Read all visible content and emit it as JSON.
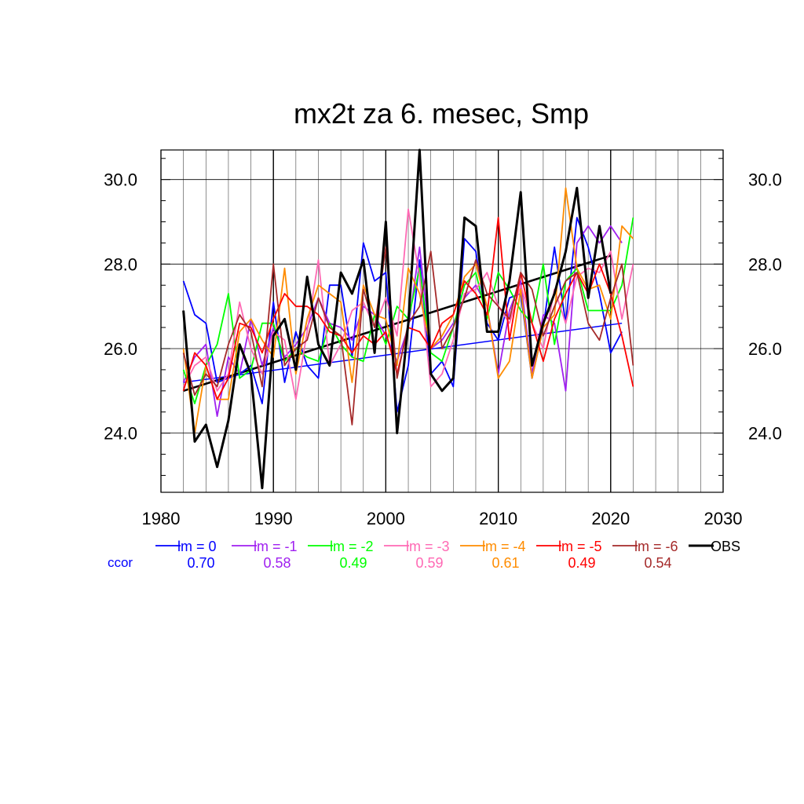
{
  "chart_data": {
    "type": "line",
    "title": "mx2t za 6. mesec, Smp",
    "xlabel": "",
    "ylabel": "",
    "xlim": [
      1980,
      2030
    ],
    "ylim": [
      22.6,
      30.7
    ],
    "x_ticks": [
      "1980",
      "1990",
      "2000",
      "2010",
      "2020",
      "2030"
    ],
    "y_ticks": [
      "24.0",
      "26.0",
      "28.0",
      "30.0"
    ],
    "x_tick_values": [
      1980,
      1990,
      2000,
      2010,
      2020,
      2030
    ],
    "y_tick_values": [
      24.0,
      26.0,
      28.0,
      30.0
    ],
    "grid": true,
    "legend_position": "bottom",
    "ccor_label": "ccor",
    "series": [
      {
        "name": "lm = 0",
        "color": "#0000ff",
        "ccor": "0.70",
        "trend": [
          25.2,
          26.6
        ],
        "x": [
          1982,
          1983,
          1984,
          1985,
          1986,
          1987,
          1988,
          1989,
          1990,
          1991,
          1992,
          1993,
          1994,
          1995,
          1996,
          1997,
          1998,
          1999,
          2000,
          2001,
          2002,
          2003,
          2004,
          2005,
          2006,
          2007,
          2008,
          2009,
          2010,
          2011,
          2012,
          2013,
          2014,
          2015,
          2016,
          2017,
          2018,
          2019,
          2020,
          2021
        ],
        "values": [
          27.6,
          26.8,
          26.6,
          25.2,
          25.3,
          25.4,
          25.6,
          24.7,
          27.1,
          25.2,
          26.4,
          25.6,
          25.3,
          27.5,
          27.5,
          25.8,
          28.5,
          27.6,
          27.8,
          24.5,
          25.6,
          28.1,
          25.4,
          25.7,
          25.1,
          28.6,
          28.3,
          26.6,
          26.2,
          27.2,
          27.3,
          25.3,
          26.5,
          28.4,
          26.6,
          29.1,
          28.4,
          27.3,
          25.9,
          26.4
        ]
      },
      {
        "name": "lm = -1",
        "color": "#a020f0",
        "ccor": "0.58",
        "trend": null,
        "x": [
          1982,
          1983,
          1984,
          1985,
          1986,
          1987,
          1988,
          1989,
          1990,
          1991,
          1992,
          1993,
          1994,
          1995,
          1996,
          1997,
          1998,
          1999,
          2000,
          2001,
          2002,
          2003,
          2004,
          2005,
          2006,
          2007,
          2008,
          2009,
          2010,
          2011,
          2012,
          2013,
          2014,
          2015,
          2016,
          2017,
          2018,
          2019,
          2020,
          2021
        ],
        "values": [
          25.2,
          25.8,
          26.1,
          24.4,
          25.8,
          25.4,
          26.7,
          25.6,
          26.5,
          25.8,
          26.1,
          26.5,
          27.2,
          26.6,
          26.5,
          26.2,
          27.0,
          26.8,
          26.3,
          25.7,
          26.5,
          28.4,
          26.0,
          26.2,
          26.6,
          27.2,
          27.5,
          27.0,
          25.4,
          26.9,
          27.6,
          25.4,
          26.8,
          26.6,
          25.0,
          28.5,
          28.9,
          28.5,
          28.9,
          28.5
        ]
      },
      {
        "name": "lm = -2",
        "color": "#00ff00",
        "ccor": "0.49",
        "trend": null,
        "x": [
          1982,
          1983,
          1984,
          1985,
          1986,
          1987,
          1988,
          1989,
          1990,
          1991,
          1992,
          1993,
          1994,
          1995,
          1996,
          1997,
          1998,
          1999,
          2000,
          2001,
          2002,
          2003,
          2004,
          2005,
          2006,
          2007,
          2008,
          2009,
          2010,
          2011,
          2012,
          2013,
          2014,
          2015,
          2016,
          2017,
          2018,
          2019,
          2020,
          2021,
          2022
        ],
        "values": [
          25.5,
          24.7,
          25.6,
          26.1,
          27.3,
          25.3,
          25.5,
          26.6,
          26.6,
          25.7,
          26.0,
          25.8,
          25.7,
          26.6,
          26.1,
          25.8,
          25.7,
          26.8,
          26.1,
          27.0,
          26.7,
          27.9,
          25.9,
          25.7,
          26.5,
          27.5,
          27.8,
          26.7,
          27.8,
          27.4,
          26.9,
          26.6,
          28.0,
          26.1,
          27.6,
          27.9,
          26.9,
          26.9,
          26.9,
          27.5,
          29.1
        ]
      },
      {
        "name": "lm = -3",
        "color": "#ff69b4",
        "ccor": "0.59",
        "trend": null,
        "x": [
          1982,
          1983,
          1984,
          1985,
          1986,
          1987,
          1988,
          1989,
          1990,
          1991,
          1992,
          1993,
          1994,
          1995,
          1996,
          1997,
          1998,
          1999,
          2000,
          2001,
          2002,
          2003,
          2004,
          2005,
          2006,
          2007,
          2008,
          2009,
          2010,
          2011,
          2012,
          2013,
          2014,
          2015,
          2016,
          2017,
          2018,
          2019,
          2020,
          2021,
          2022
        ],
        "values": [
          25.1,
          25.6,
          25.8,
          25.0,
          25.4,
          27.1,
          26.0,
          25.4,
          26.4,
          26.2,
          24.8,
          26.4,
          28.1,
          25.6,
          26.1,
          26.9,
          27.1,
          26.5,
          27.2,
          26.3,
          29.3,
          27.7,
          25.1,
          25.4,
          26.2,
          27.3,
          27.4,
          27.8,
          27.0,
          26.6,
          27.5,
          26.6,
          26.0,
          27.4,
          26.6,
          27.7,
          27.9,
          27.8,
          28.3,
          26.7,
          28.0
        ]
      },
      {
        "name": "lm = -4",
        "color": "#ff8c00",
        "ccor": "0.61",
        "trend": null,
        "x": [
          1982,
          1983,
          1984,
          1985,
          1986,
          1987,
          1988,
          1989,
          1990,
          1991,
          1992,
          1993,
          1994,
          1995,
          1996,
          1997,
          1998,
          1999,
          2000,
          2001,
          2002,
          2003,
          2004,
          2005,
          2006,
          2007,
          2008,
          2009,
          2010,
          2011,
          2012,
          2013,
          2014,
          2015,
          2016,
          2017,
          2018,
          2019,
          2020,
          2021,
          2022
        ],
        "values": [
          26.0,
          24.0,
          25.6,
          24.8,
          24.8,
          26.4,
          26.7,
          26.2,
          25.8,
          27.9,
          25.4,
          26.7,
          27.5,
          27.3,
          27.1,
          25.2,
          27.5,
          26.8,
          26.7,
          25.6,
          27.9,
          27.3,
          26.0,
          26.3,
          26.8,
          27.7,
          28.0,
          27.0,
          25.3,
          25.7,
          27.4,
          25.3,
          26.5,
          26.8,
          29.8,
          27.9,
          27.4,
          27.5,
          26.7,
          28.9,
          28.6
        ]
      },
      {
        "name": "lm = -5",
        "color": "#ff0000",
        "ccor": "0.49",
        "trend": null,
        "x": [
          1982,
          1983,
          1984,
          1985,
          1986,
          1987,
          1988,
          1989,
          1990,
          1991,
          1992,
          1993,
          1994,
          1995,
          1996,
          1997,
          1998,
          1999,
          2000,
          2001,
          2002,
          2003,
          2004,
          2005,
          2006,
          2007,
          2008,
          2009,
          2010,
          2011,
          2012,
          2013,
          2014,
          2015,
          2016,
          2017,
          2018,
          2019,
          2020,
          2021,
          2022
        ],
        "values": [
          25.0,
          25.9,
          25.6,
          24.8,
          25.3,
          26.6,
          26.5,
          25.9,
          26.7,
          27.3,
          27.0,
          27.0,
          26.8,
          26.4,
          26.3,
          25.9,
          26.3,
          26.1,
          26.4,
          25.4,
          26.5,
          26.4,
          26.0,
          26.6,
          26.8,
          27.6,
          27.3,
          26.8,
          29.1,
          26.2,
          27.8,
          26.6,
          25.7,
          26.7,
          27.3,
          27.8,
          27.3,
          28.0,
          27.3,
          26.3,
          25.1
        ]
      },
      {
        "name": "lm = -6",
        "color": "#a52a2a",
        "ccor": "0.54",
        "trend": null,
        "x": [
          1982,
          1983,
          1984,
          1985,
          1986,
          1987,
          1988,
          1989,
          1990,
          1991,
          1992,
          1993,
          1994,
          1995,
          1996,
          1997,
          1998,
          1999,
          2000,
          2001,
          2002,
          2003,
          2004,
          2005,
          2006,
          2007,
          2008,
          2009,
          2010,
          2011,
          2012,
          2013,
          2014,
          2015,
          2016,
          2017,
          2018,
          2019,
          2020,
          2021,
          2022
        ],
        "values": [
          25.9,
          24.9,
          25.4,
          25.1,
          26.1,
          26.8,
          26.4,
          25.1,
          28.0,
          25.6,
          26.0,
          26.2,
          27.2,
          26.5,
          26.3,
          24.2,
          27.4,
          26.5,
          28.4,
          25.3,
          26.6,
          27.0,
          28.3,
          26.0,
          26.5,
          27.2,
          28.1,
          27.3,
          27.0,
          26.7,
          27.8,
          27.4,
          26.3,
          27.0,
          27.6,
          27.8,
          26.6,
          26.2,
          27.2,
          28.0,
          25.6
        ]
      },
      {
        "name": "OBS",
        "color": "#000000",
        "ccor": "",
        "trend": [
          25.0,
          28.2
        ],
        "x": [
          1982,
          1983,
          1984,
          1985,
          1986,
          1987,
          1988,
          1989,
          1990,
          1991,
          1992,
          1993,
          1994,
          1995,
          1996,
          1997,
          1998,
          1999,
          2000,
          2001,
          2002,
          2003,
          2004,
          2005,
          2006,
          2007,
          2008,
          2009,
          2010,
          2011,
          2012,
          2013,
          2014,
          2015,
          2016,
          2017,
          2018,
          2019,
          2020
        ],
        "values": [
          26.9,
          23.8,
          24.2,
          23.2,
          24.3,
          26.1,
          25.4,
          22.7,
          26.3,
          26.7,
          25.5,
          27.7,
          26.1,
          25.6,
          27.8,
          27.3,
          28.1,
          25.9,
          29.0,
          24.0,
          26.6,
          30.7,
          25.4,
          25.0,
          25.3,
          29.1,
          28.9,
          26.4,
          26.4,
          27.6,
          29.7,
          25.6,
          26.6,
          27.3,
          28.3,
          29.8,
          27.2,
          28.9,
          27.3
        ]
      }
    ]
  }
}
